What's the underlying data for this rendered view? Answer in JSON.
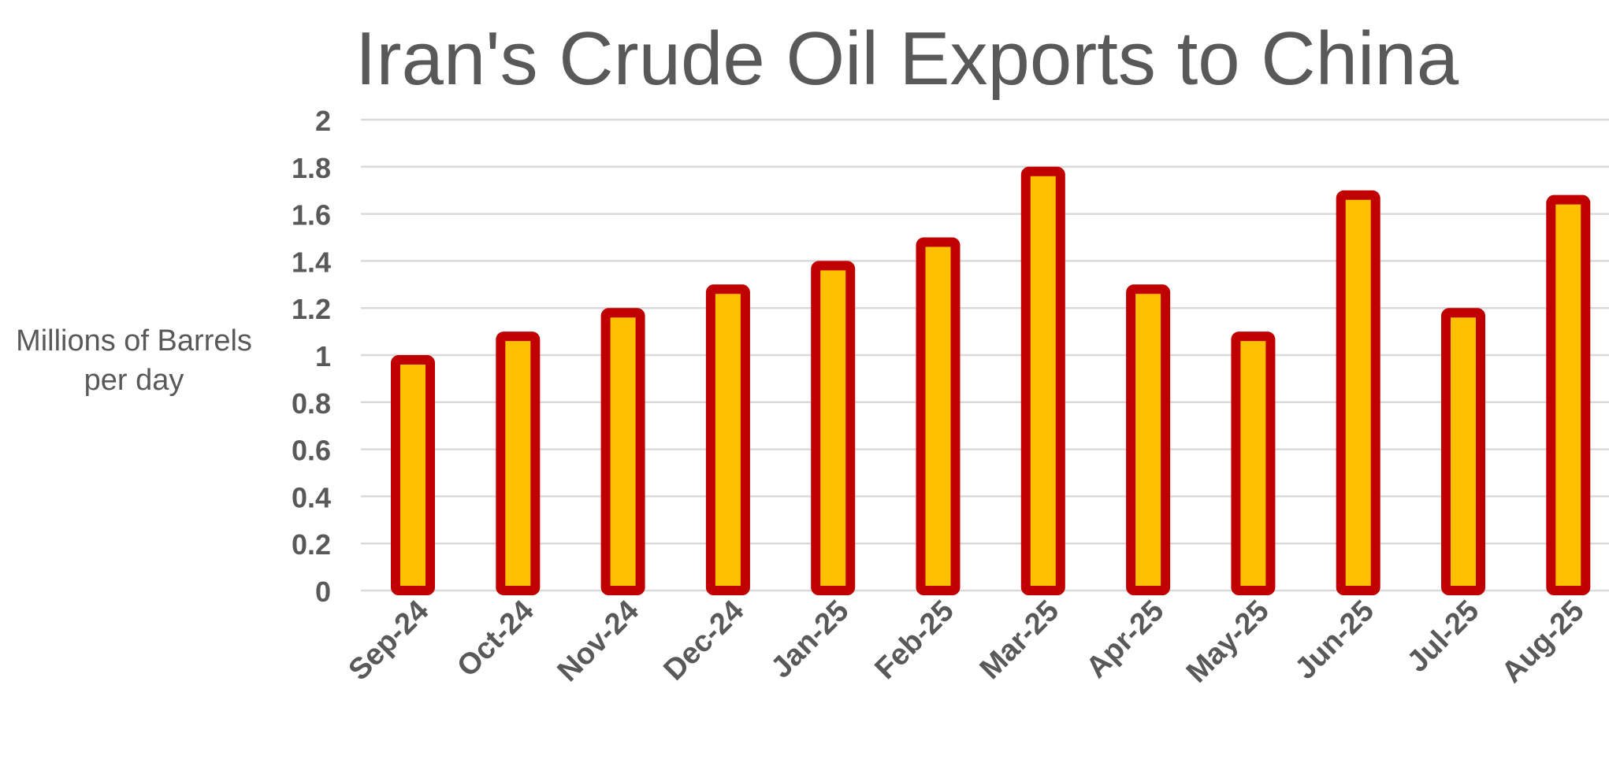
{
  "chart_data": {
    "type": "bar",
    "title": "Iran's Crude Oil Exports to China",
    "ylabel": "Millions of Barrels per day",
    "xlabel": "",
    "categories": [
      "Sep-24",
      "Oct-24",
      "Nov-24",
      "Dec-24",
      "Jan-25",
      "Feb-25",
      "Mar-25",
      "Apr-25",
      "May-25",
      "Jun-25",
      "Jul-25",
      "Aug-25"
    ],
    "values": [
      1.0,
      1.1,
      1.2,
      1.3,
      1.4,
      1.5,
      1.8,
      1.3,
      1.1,
      1.7,
      1.2,
      1.68
    ],
    "ylim": [
      0,
      2
    ],
    "yticks": [
      "0",
      "0.2",
      "0.4",
      "0.6",
      "0.8",
      "1",
      "1.2",
      "1.4",
      "1.6",
      "1.8",
      "2"
    ],
    "grid": true,
    "legend": "none",
    "colors": {
      "bar_fill": "#FFC000",
      "bar_border": "#C00000",
      "grid": "#D9D9D9",
      "text": "#595959"
    }
  }
}
